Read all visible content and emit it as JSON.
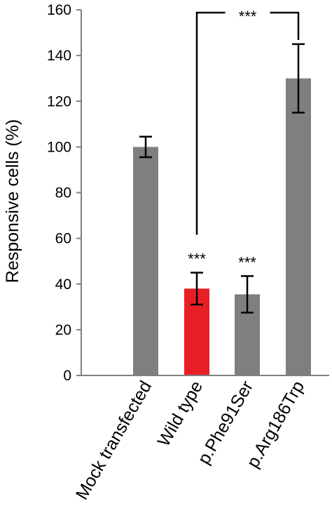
{
  "chart_data": {
    "type": "bar",
    "title": "",
    "xlabel": "",
    "ylabel": "Responsive cells (%)",
    "ylim": [
      0,
      160
    ],
    "yticks": [
      0,
      20,
      40,
      60,
      80,
      100,
      120,
      140,
      160
    ],
    "categories": [
      "Mock transfected",
      "Wild type",
      "p.Phe91Ser",
      "p.Arg186Trp"
    ],
    "values": [
      100,
      38,
      35.5,
      130
    ],
    "errors": [
      4.5,
      7,
      8,
      15
    ],
    "colors": [
      "#7f7f7f",
      "#ea1f26",
      "#7f7f7f",
      "#7f7f7f"
    ],
    "significance": [
      {
        "category": "Wild type",
        "label": "***"
      },
      {
        "category": "p.Phe91Ser",
        "label": "***"
      }
    ],
    "comparison": {
      "from": "Wild type",
      "to": "p.Arg186Trp",
      "label": "***"
    },
    "grid": false,
    "legend": "none"
  }
}
